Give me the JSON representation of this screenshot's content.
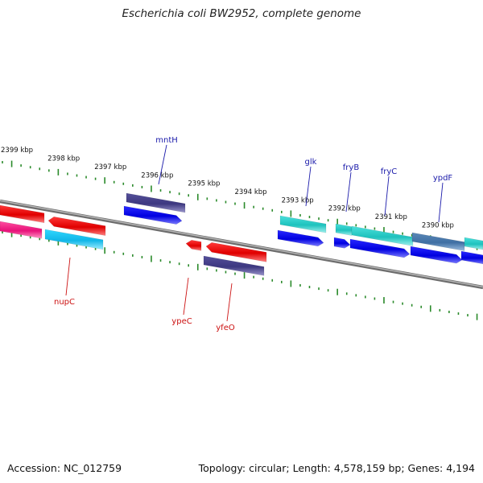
{
  "title": "Escherichia coli BW2952, complete genome",
  "footer": {
    "accession": "Accession: NC_012759",
    "stats": "Topology: circular; Length: 4,578,159 bp; Genes: 4,194"
  },
  "map": {
    "colors": {
      "backbone": "#8a8a8a",
      "tick": "#2a8a2a",
      "label_top": "#1a1aaa",
      "label_bottom": "#cc1111"
    },
    "kbp_labels": [
      "2399 kbp",
      "2398 kbp",
      "2397 kbp",
      "2396 kbp",
      "2395 kbp",
      "2394 kbp",
      "2393 kbp",
      "2392 kbp",
      "2391 kbp",
      "2390 kbp"
    ],
    "genes_top": [
      "mntH",
      "glk",
      "fryB",
      "fryC",
      "ypdF"
    ],
    "genes_bottom": [
      "nupC",
      "ypeC",
      "yfeO"
    ]
  }
}
